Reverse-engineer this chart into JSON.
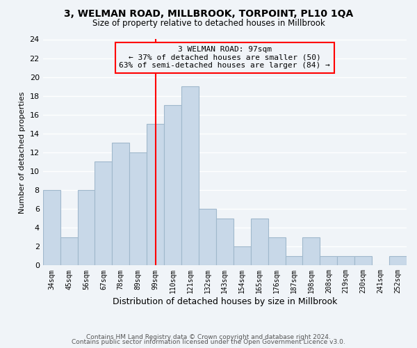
{
  "title": "3, WELMAN ROAD, MILLBROOK, TORPOINT, PL10 1QA",
  "subtitle": "Size of property relative to detached houses in Millbrook",
  "xlabel": "Distribution of detached houses by size in Millbrook",
  "ylabel": "Number of detached properties",
  "bin_labels": [
    "34sqm",
    "45sqm",
    "56sqm",
    "67sqm",
    "78sqm",
    "89sqm",
    "99sqm",
    "110sqm",
    "121sqm",
    "132sqm",
    "143sqm",
    "154sqm",
    "165sqm",
    "176sqm",
    "187sqm",
    "198sqm",
    "208sqm",
    "219sqm",
    "230sqm",
    "241sqm",
    "252sqm"
  ],
  "bar_heights": [
    8,
    3,
    8,
    11,
    13,
    12,
    15,
    17,
    19,
    6,
    5,
    2,
    5,
    3,
    1,
    3,
    1,
    1,
    1,
    0,
    1
  ],
  "bar_color": "#c8d8e8",
  "bar_edge_color": "#a0b8cc",
  "vline_x_index": 6,
  "vline_color": "red",
  "annotation_text": "3 WELMAN ROAD: 97sqm\n← 37% of detached houses are smaller (50)\n63% of semi-detached houses are larger (84) →",
  "annotation_box_edge_color": "red",
  "annotation_text_color": "black",
  "ylim": [
    0,
    24
  ],
  "yticks": [
    0,
    2,
    4,
    6,
    8,
    10,
    12,
    14,
    16,
    18,
    20,
    22,
    24
  ],
  "footer_line1": "Contains HM Land Registry data © Crown copyright and database right 2024.",
  "footer_line2": "Contains public sector information licensed under the Open Government Licence v3.0.",
  "bg_color": "#f0f4f8",
  "grid_color": "white"
}
